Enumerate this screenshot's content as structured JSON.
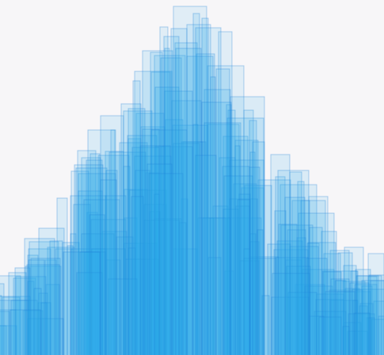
{
  "artwork": {
    "kind": "translucent-overlapping-bars",
    "background_color": "#f7f6f8",
    "fill_color": "#29a8ec",
    "stroke_color": "#1e7fd8",
    "fill_opacity": 0.14,
    "stroke_opacity": 0.35
  }
}
